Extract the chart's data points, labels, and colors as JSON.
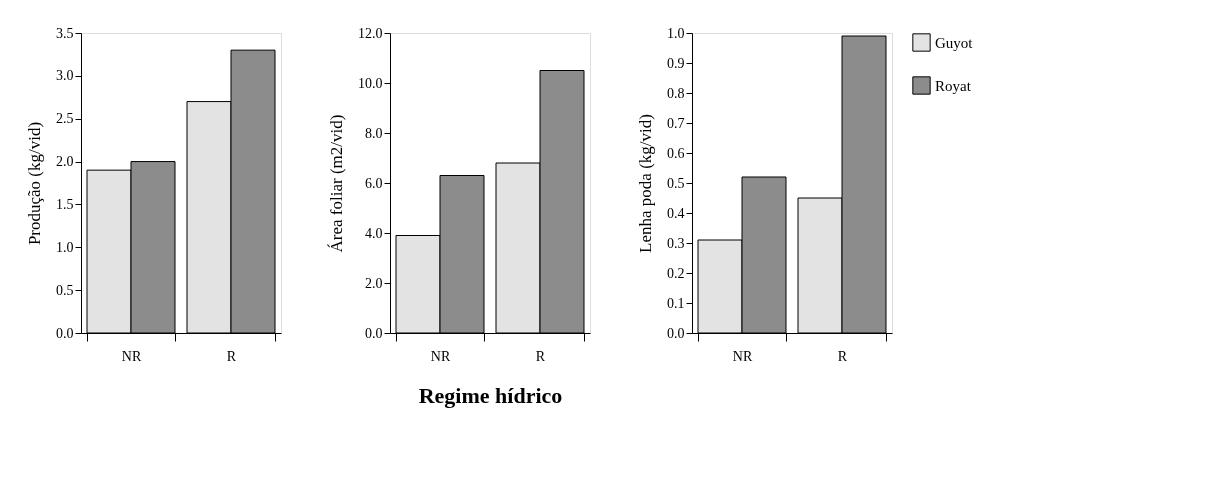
{
  "chart_data": [
    {
      "type": "bar",
      "categories": [
        "NR",
        "R"
      ],
      "ylabel": "Produção  (kg/vid)",
      "ylim": [
        0,
        3.5
      ],
      "yticks": [
        {
          "value": 0,
          "label": "0.0"
        },
        {
          "value": 0.5,
          "label": "0.5"
        },
        {
          "value": 1,
          "label": "1.0"
        },
        {
          "value": 1.5,
          "label": "1.5"
        },
        {
          "value": 2,
          "label": "2.0"
        },
        {
          "value": 2.5,
          "label": "2.5"
        },
        {
          "value": 3,
          "label": "3.0"
        },
        {
          "value": 3.5,
          "label": "3.5"
        }
      ],
      "grid": false,
      "legend": false,
      "series": [
        {
          "color": "#e3e3e3",
          "values": [
            1.9,
            2.7
          ]
        },
        {
          "color": "#8c8c8c",
          "values": [
            2.0,
            3.3
          ]
        }
      ]
    },
    {
      "type": "bar",
      "categories": [
        "NR",
        "R"
      ],
      "ylabel": "Área foliar (m2/vid)",
      "xlabel": "Regime hídrico",
      "ylim": [
        0,
        12
      ],
      "yticks": [
        {
          "value": 0,
          "label": "0.0"
        },
        {
          "value": 2,
          "label": "2.0"
        },
        {
          "value": 4,
          "label": "4.0"
        },
        {
          "value": 6,
          "label": "6.0"
        },
        {
          "value": 8,
          "label": "8.0"
        },
        {
          "value": 10,
          "label": "10.0"
        },
        {
          "value": 12,
          "label": "12.0"
        }
      ],
      "grid": false,
      "legend": false,
      "series": [
        {
          "color": "#e3e3e3",
          "values": [
            3.9,
            6.8
          ]
        },
        {
          "color": "#8c8c8c",
          "values": [
            6.3,
            10.5
          ]
        }
      ]
    },
    {
      "type": "bar",
      "categories": [
        "NR",
        "R"
      ],
      "ylabel": "Lenha poda  (kg/vid)",
      "ylim": [
        0,
        1
      ],
      "yticks": [
        {
          "value": 0,
          "label": "0.0"
        },
        {
          "value": 0.1,
          "label": "0.1"
        },
        {
          "value": 0.2,
          "label": "0.2"
        },
        {
          "value": 0.3,
          "label": "0.3"
        },
        {
          "value": 0.4,
          "label": "0.4"
        },
        {
          "value": 0.5,
          "label": "0.5"
        },
        {
          "value": 0.6,
          "label": "0.6"
        },
        {
          "value": 0.7,
          "label": "0.7"
        },
        {
          "value": 0.8,
          "label": "0.8"
        },
        {
          "value": 0.9,
          "label": "0.9"
        },
        {
          "value": 1,
          "label": "1.0"
        }
      ],
      "grid": false,
      "legend": "right",
      "series": [
        {
          "name": "Guyot",
          "color": "#e3e3e3",
          "values": [
            0.31,
            0.45
          ]
        },
        {
          "name": "Royat",
          "color": "#8c8c8c",
          "values": [
            0.52,
            0.99
          ]
        }
      ]
    }
  ]
}
